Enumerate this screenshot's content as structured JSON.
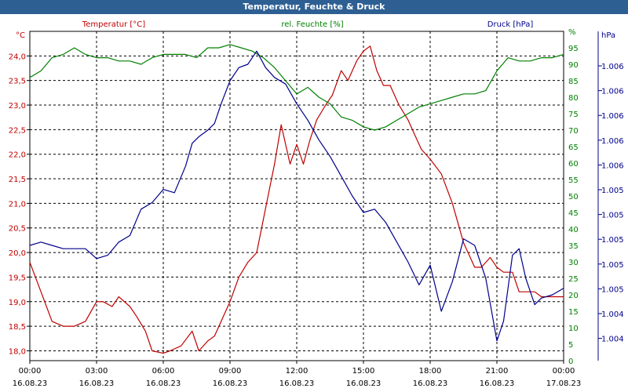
{
  "window": {
    "title": "Temperatur, Feuchte & Druck"
  },
  "chart_data": {
    "type": "line",
    "title": "Temperatur, Feuchte & Druck",
    "grid": true,
    "x_ticks": [
      {
        "time": "00:00",
        "date": "16.08.23"
      },
      {
        "time": "03:00",
        "date": "16.08.23"
      },
      {
        "time": "06:00",
        "date": "16.08.23"
      },
      {
        "time": "09:00",
        "date": "16.08.23"
      },
      {
        "time": "12:00",
        "date": "16.08.23"
      },
      {
        "time": "15:00",
        "date": "16.08.23"
      },
      {
        "time": "18:00",
        "date": "16.08.23"
      },
      {
        "time": "21:00",
        "date": "16.08.23"
      },
      {
        "time": "00:00",
        "date": "17.08.23"
      }
    ],
    "x_range_hours": [
      0,
      24
    ],
    "axes": {
      "temperature": {
        "label": "Temperatur [°C]",
        "unit": "°C",
        "side": "left",
        "color": "#c00000",
        "range": [
          17.8,
          24.5
        ],
        "ticks": [
          "24,0",
          "23,5",
          "23,0",
          "22,5",
          "22,0",
          "21,5",
          "21,0",
          "20,5",
          "20,0",
          "19,5",
          "19,0",
          "18,5",
          "18,0"
        ]
      },
      "humidity": {
        "label": "rel. Feuchte [%]",
        "unit": "%",
        "side": "right",
        "color": "#008000",
        "range": [
          0,
          100
        ],
        "ticks": [
          "0",
          "5",
          "10",
          "15",
          "20",
          "25",
          "30",
          "35",
          "40",
          "45",
          "50",
          "55",
          "60",
          "65",
          "70",
          "75",
          "80",
          "85",
          "90",
          "95",
          "%"
        ]
      },
      "pressure": {
        "label": "Druck [hPa]",
        "unit": "hPa",
        "side": "right",
        "color": "#00008b",
        "range": [
          0,
          1
        ],
        "ticks": [
          "1.006",
          "1.006",
          "1.006",
          "1.006",
          "1.006",
          "1.005",
          "1.005",
          "1.005",
          "1.005",
          "1.005",
          "1.004",
          "1.004"
        ]
      }
    },
    "series": [
      {
        "name": "Temperatur [°C]",
        "axis": "temperature",
        "color": "#c00000",
        "x": [
          0,
          0.5,
          1,
          1.5,
          2,
          2.5,
          3,
          3.3,
          3.7,
          4,
          4.5,
          4.8,
          5.2,
          5.5,
          6,
          6.3,
          6.8,
          7.3,
          7.6,
          8,
          8.3,
          8.6,
          9,
          9.4,
          9.8,
          10.2,
          10.6,
          11,
          11.3,
          11.7,
          12,
          12.3,
          12.6,
          12.9,
          13.3,
          13.6,
          14,
          14.3,
          14.7,
          15,
          15.3,
          15.6,
          15.9,
          16.2,
          16.6,
          17,
          17.3,
          17.6,
          18,
          18.5,
          19,
          19.5,
          20,
          20.3,
          20.7,
          21,
          21.3,
          21.7,
          22,
          22.3,
          22.7,
          23,
          23.3,
          23.6,
          24
        ],
        "y": [
          19.8,
          19.2,
          18.6,
          18.5,
          18.5,
          18.6,
          19.0,
          19.0,
          18.9,
          19.1,
          18.9,
          18.7,
          18.4,
          18.0,
          17.95,
          18.0,
          18.1,
          18.4,
          18.0,
          18.2,
          18.3,
          18.6,
          19.0,
          19.5,
          19.8,
          20.0,
          20.9,
          21.8,
          22.6,
          21.8,
          22.2,
          21.8,
          22.3,
          22.7,
          23.0,
          23.2,
          23.7,
          23.5,
          23.9,
          24.1,
          24.2,
          23.7,
          23.4,
          23.4,
          23.0,
          22.7,
          22.4,
          22.1,
          21.9,
          21.6,
          21.0,
          20.2,
          19.7,
          19.7,
          19.9,
          19.7,
          19.6,
          19.6,
          19.2,
          19.2,
          19.2,
          19.1,
          19.1,
          19.1,
          19.1
        ]
      },
      {
        "name": "rel. Feuchte [%]",
        "axis": "humidity",
        "color": "#008000",
        "x": [
          0,
          0.5,
          1,
          1.5,
          2,
          2.5,
          3,
          3.5,
          4,
          4.5,
          5,
          5.5,
          6,
          6.5,
          7,
          7.5,
          8,
          8.5,
          9,
          9.5,
          10,
          10.5,
          11,
          11.5,
          12,
          12.5,
          13,
          13.5,
          14,
          14.5,
          15,
          15.5,
          16,
          16.5,
          17,
          17.5,
          18,
          18.5,
          19,
          19.5,
          20,
          20.5,
          21,
          21.5,
          22,
          22.5,
          23,
          23.5,
          24
        ],
        "y": [
          86,
          88,
          92,
          93,
          95,
          93,
          92,
          92,
          91,
          91,
          90,
          92,
          93,
          93,
          93,
          92,
          95,
          95,
          96,
          95,
          94,
          92,
          89,
          85,
          81,
          83,
          80,
          78,
          74,
          73,
          71,
          70,
          71,
          73,
          75,
          77,
          78,
          79,
          80,
          81,
          81,
          82,
          88,
          92,
          91,
          91,
          92,
          92,
          93
        ]
      },
      {
        "name": "Druck [hPa]",
        "axis": "pressure",
        "color": "#00008b",
        "x": [
          0,
          0.5,
          1,
          1.5,
          2,
          2.5,
          3,
          3.5,
          4,
          4.5,
          5,
          5.5,
          6,
          6.5,
          7,
          7.3,
          7.6,
          8,
          8.3,
          8.6,
          9,
          9.4,
          9.8,
          10.2,
          10.6,
          11,
          11.5,
          12,
          12.5,
          13,
          13.5,
          14,
          14.5,
          15,
          15.5,
          16,
          16.5,
          17,
          17.5,
          18,
          18.5,
          19,
          19.5,
          20,
          20.5,
          21,
          21.3,
          21.7,
          22,
          22.3,
          22.7,
          23,
          23.5,
          24
        ],
        "y": [
          0.35,
          0.36,
          0.35,
          0.34,
          0.34,
          0.34,
          0.31,
          0.32,
          0.36,
          0.38,
          0.46,
          0.48,
          0.52,
          0.51,
          0.59,
          0.66,
          0.68,
          0.7,
          0.72,
          0.78,
          0.85,
          0.89,
          0.9,
          0.94,
          0.89,
          0.86,
          0.84,
          0.78,
          0.73,
          0.67,
          0.62,
          0.56,
          0.5,
          0.45,
          0.46,
          0.42,
          0.36,
          0.3,
          0.23,
          0.29,
          0.15,
          0.24,
          0.37,
          0.35,
          0.25,
          0.06,
          0.12,
          0.32,
          0.34,
          0.25,
          0.17,
          0.19,
          0.2,
          0.22
        ]
      }
    ]
  }
}
